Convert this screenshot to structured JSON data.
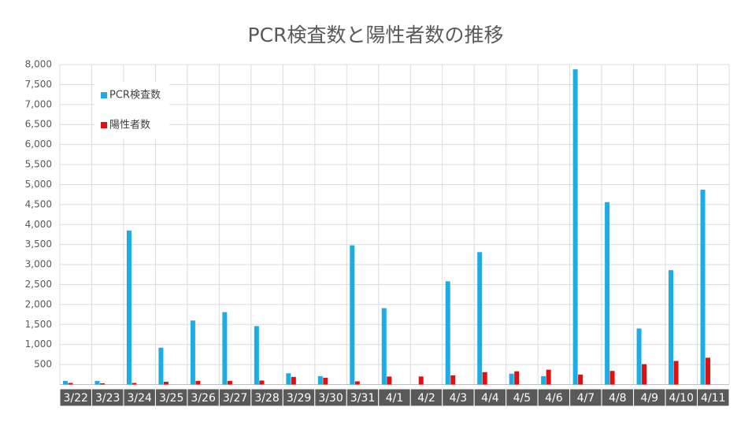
{
  "chart_data": {
    "type": "bar",
    "title": "PCR検査数と陽性者数の推移",
    "categories": [
      "3/22",
      "3/23",
      "3/24",
      "3/25",
      "3/26",
      "3/27",
      "3/28",
      "3/29",
      "3/30",
      "3/31",
      "4/1",
      "4/2",
      "4/3",
      "4/4",
      "4/5",
      "4/6",
      "4/7",
      "4/8",
      "4/9",
      "4/10",
      "4/11"
    ],
    "series": [
      {
        "name": "PCR検査数",
        "color": "#1cade4",
        "values": [
          90,
          90,
          3850,
          920,
          1600,
          1810,
          1460,
          280,
          210,
          3480,
          1910,
          0,
          2580,
          3310,
          270,
          210,
          7880,
          4560,
          1400,
          2860,
          4870
        ]
      },
      {
        "name": "陽性者数",
        "color": "#e01010",
        "values": [
          40,
          30,
          40,
          70,
          90,
          90,
          100,
          190,
          170,
          80,
          200,
          200,
          230,
          310,
          330,
          370,
          250,
          340,
          510,
          590,
          670
        ]
      }
    ],
    "ylim": [
      0,
      8000
    ],
    "yticks": [
      500,
      {
        "value": 1000,
        "label": "1,000"
      },
      {
        "value": 1500,
        "label": "1,500"
      },
      {
        "value": 2000,
        "label": "2,000"
      },
      {
        "value": 2500,
        "label": "2,500"
      },
      {
        "value": 3000,
        "label": "3,000"
      },
      {
        "value": 3500,
        "label": "3,500"
      },
      {
        "value": 4000,
        "label": "4,000"
      },
      {
        "value": 4500,
        "label": "4,500"
      },
      {
        "value": 5000,
        "label": "5,000"
      },
      {
        "value": 5500,
        "label": "5,500"
      },
      {
        "value": 6000,
        "label": "6,000"
      },
      {
        "value": 6500,
        "label": "6,500"
      },
      {
        "value": 7000,
        "label": "7,000"
      },
      {
        "value": 7500,
        "label": "7,500"
      },
      {
        "value": 8000,
        "label": "8,000"
      }
    ],
    "grid": true,
    "legend": "top-left"
  }
}
